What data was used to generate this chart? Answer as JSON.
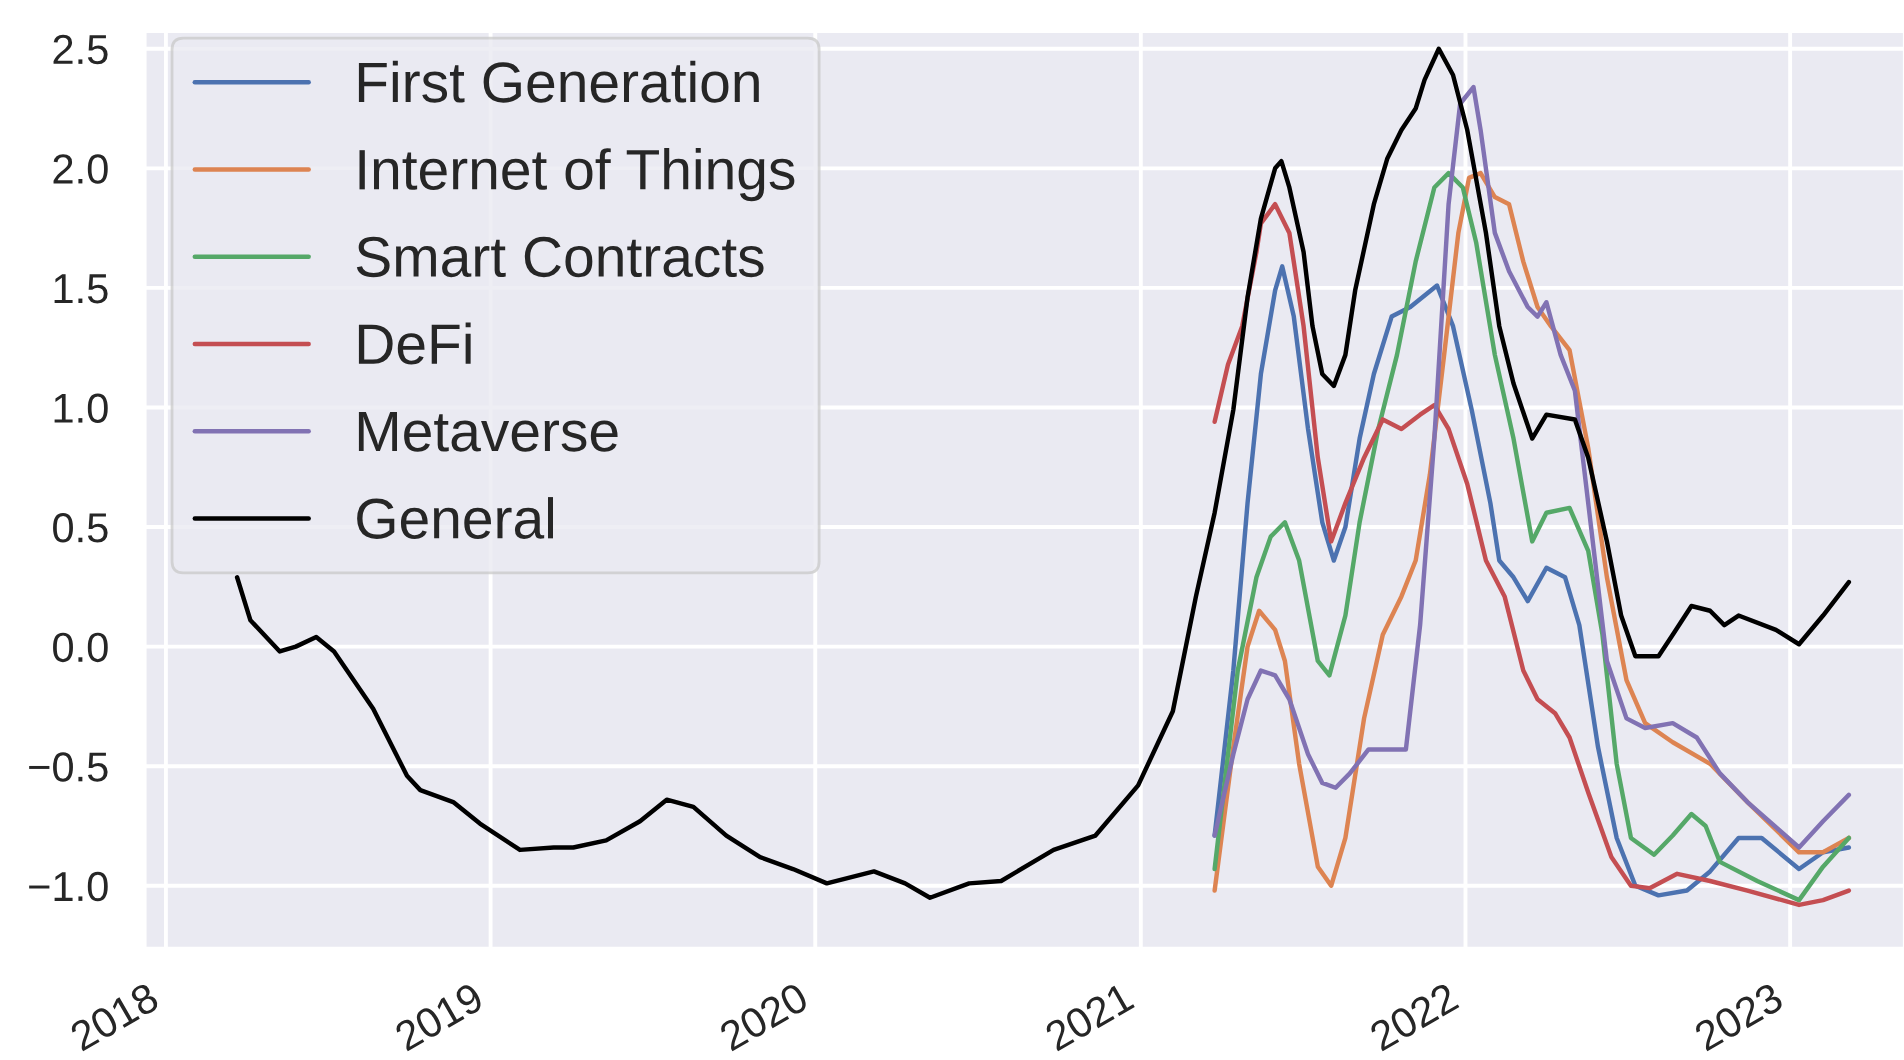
{
  "chart_data": {
    "type": "line",
    "xlim": [
      "2017-12-09",
      "2023-05-09"
    ],
    "xticks": [
      "2018",
      "2019",
      "2020",
      "2021",
      "2022",
      "2023"
    ],
    "ylim": [
      -1.26,
      2.57
    ],
    "yticks": [
      {
        "value": -1.0,
        "label": "−1.0"
      },
      {
        "value": -0.5,
        "label": "−0.5"
      },
      {
        "value": 0.0,
        "label": "0.0"
      },
      {
        "value": 0.5,
        "label": "0.5"
      },
      {
        "value": 1.0,
        "label": "1.0"
      },
      {
        "value": 1.5,
        "label": "1.5"
      },
      {
        "value": 2.0,
        "label": "2.0"
      },
      {
        "value": 2.5,
        "label": "2.5"
      }
    ],
    "grid": true,
    "legend": "top left",
    "series": [
      {
        "name": "First Generation",
        "color": "#4c72b0",
        "x": [
          "2021-03-25",
          "2021-04-15",
          "2021-05-01",
          "2021-05-16",
          "2021-06-01",
          "2021-06-09",
          "2021-06-22",
          "2021-07-08",
          "2021-07-24",
          "2021-08-06",
          "2021-08-19",
          "2021-09-04",
          "2021-09-20",
          "2021-10-10",
          "2021-10-31",
          "2021-11-30",
          "2021-12-18",
          "2022-01-08",
          "2022-01-29",
          "2022-02-08",
          "2022-02-24",
          "2022-03-12",
          "2022-04-02",
          "2022-04-23",
          "2022-05-09",
          "2022-05-30",
          "2022-06-20",
          "2022-07-11",
          "2022-08-06",
          "2022-09-07",
          "2022-10-03",
          "2022-11-04",
          "2022-11-30",
          "2023-01-11",
          "2023-02-07",
          "2023-03-08"
        ],
        "values": [
          -0.79,
          -0.1,
          0.6,
          1.14,
          1.49,
          1.59,
          1.38,
          0.91,
          0.52,
          0.36,
          0.5,
          0.87,
          1.14,
          1.38,
          1.42,
          1.51,
          1.34,
          0.99,
          0.6,
          0.36,
          0.29,
          0.19,
          0.33,
          0.29,
          0.09,
          -0.42,
          -0.8,
          -1.0,
          -1.04,
          -1.02,
          -0.94,
          -0.8,
          -0.8,
          -0.93,
          -0.86,
          -0.84
        ]
      },
      {
        "name": "Internet of Things",
        "color": "#dd8452",
        "x": [
          "2021-03-25",
          "2021-04-15",
          "2021-05-01",
          "2021-05-14",
          "2021-06-01",
          "2021-06-12",
          "2021-06-28",
          "2021-07-19",
          "2021-08-03",
          "2021-08-19",
          "2021-09-09",
          "2021-09-30",
          "2021-10-21",
          "2021-11-06",
          "2021-11-22",
          "2021-12-08",
          "2021-12-24",
          "2022-01-05",
          "2022-01-18",
          "2022-02-03",
          "2022-02-19",
          "2022-03-07",
          "2022-03-23",
          "2022-04-07",
          "2022-04-28",
          "2022-05-19",
          "2022-06-09",
          "2022-07-01",
          "2022-07-22",
          "2022-08-22",
          "2022-10-03",
          "2022-11-14",
          "2023-01-11",
          "2023-02-07",
          "2023-03-08"
        ],
        "values": [
          -1.02,
          -0.42,
          0.0,
          0.15,
          0.07,
          -0.06,
          -0.49,
          -0.92,
          -1.0,
          -0.8,
          -0.3,
          0.05,
          0.21,
          0.36,
          0.72,
          1.22,
          1.73,
          1.96,
          1.98,
          1.88,
          1.85,
          1.61,
          1.42,
          1.34,
          1.24,
          0.83,
          0.29,
          -0.14,
          -0.32,
          -0.4,
          -0.49,
          -0.65,
          -0.86,
          -0.86,
          -0.8
        ]
      },
      {
        "name": "Smart Contracts",
        "color": "#55a868",
        "x": [
          "2021-03-25",
          "2021-04-20",
          "2021-05-11",
          "2021-05-27",
          "2021-06-12",
          "2021-06-28",
          "2021-07-19",
          "2021-08-01",
          "2021-08-19",
          "2021-09-04",
          "2021-09-25",
          "2021-10-16",
          "2021-11-06",
          "2021-11-27",
          "2021-12-13",
          "2021-12-29",
          "2022-01-13",
          "2022-02-03",
          "2022-02-24",
          "2022-03-17",
          "2022-04-02",
          "2022-04-28",
          "2022-05-19",
          "2022-06-04",
          "2022-06-20",
          "2022-07-06",
          "2022-08-01",
          "2022-08-22",
          "2022-09-12",
          "2022-09-28",
          "2022-10-14",
          "2022-11-25",
          "2023-01-11",
          "2023-02-07",
          "2023-03-08"
        ],
        "values": [
          -0.93,
          -0.1,
          0.29,
          0.46,
          0.52,
          0.36,
          -0.06,
          -0.12,
          0.13,
          0.52,
          0.91,
          1.22,
          1.61,
          1.92,
          1.98,
          1.92,
          1.69,
          1.22,
          0.87,
          0.44,
          0.56,
          0.58,
          0.4,
          0.05,
          -0.49,
          -0.8,
          -0.87,
          -0.79,
          -0.7,
          -0.75,
          -0.9,
          -0.98,
          -1.06,
          -0.92,
          -0.8
        ]
      },
      {
        "name": "DeFi",
        "color": "#c44e52",
        "x": [
          "2021-03-25",
          "2021-04-09",
          "2021-04-25",
          "2021-05-11",
          "2021-05-16",
          "2021-06-01",
          "2021-06-17",
          "2021-07-03",
          "2021-07-19",
          "2021-08-03",
          "2021-08-19",
          "2021-09-09",
          "2021-09-30",
          "2021-10-21",
          "2021-11-11",
          "2021-11-27",
          "2021-12-13",
          "2022-01-03",
          "2022-01-24",
          "2022-02-14",
          "2022-03-07",
          "2022-03-23",
          "2022-04-12",
          "2022-04-28",
          "2022-05-19",
          "2022-06-14",
          "2022-07-06",
          "2022-07-27",
          "2022-08-27",
          "2022-10-03",
          "2022-11-14",
          "2023-01-11",
          "2023-02-07",
          "2023-03-08"
        ],
        "values": [
          0.94,
          1.18,
          1.34,
          1.65,
          1.77,
          1.85,
          1.73,
          1.34,
          0.79,
          0.44,
          0.6,
          0.79,
          0.95,
          0.91,
          0.97,
          1.01,
          0.91,
          0.68,
          0.36,
          0.21,
          -0.1,
          -0.22,
          -0.28,
          -0.38,
          -0.61,
          -0.88,
          -1.0,
          -1.01,
          -0.95,
          -0.98,
          -1.02,
          -1.08,
          -1.06,
          -1.02
        ]
      },
      {
        "name": "Metaverse",
        "color": "#8172b3",
        "x": [
          "2021-03-25",
          "2021-04-15",
          "2021-05-01",
          "2021-05-16",
          "2021-06-01",
          "2021-06-17",
          "2021-07-08",
          "2021-07-24",
          "2021-08-08",
          "2021-08-24",
          "2021-09-14",
          "2021-10-05",
          "2021-10-26",
          "2021-11-11",
          "2021-11-27",
          "2021-12-13",
          "2021-12-26",
          "2022-01-10",
          "2022-01-18",
          "2022-02-03",
          "2022-02-19",
          "2022-03-12",
          "2022-03-23",
          "2022-04-02",
          "2022-04-18",
          "2022-05-04",
          "2022-05-19",
          "2022-06-09",
          "2022-07-01",
          "2022-07-22",
          "2022-08-22",
          "2022-09-18",
          "2022-10-14",
          "2022-11-14",
          "2023-01-11",
          "2023-02-07",
          "2023-03-08"
        ],
        "values": [
          -0.79,
          -0.45,
          -0.22,
          -0.1,
          -0.12,
          -0.22,
          -0.45,
          -0.57,
          -0.59,
          -0.53,
          -0.43,
          -0.43,
          -0.43,
          0.09,
          0.87,
          1.85,
          2.27,
          2.34,
          2.16,
          1.73,
          1.57,
          1.42,
          1.38,
          1.44,
          1.22,
          1.07,
          0.6,
          -0.06,
          -0.3,
          -0.34,
          -0.32,
          -0.38,
          -0.53,
          -0.65,
          -0.84,
          -0.73,
          -0.62
        ]
      },
      {
        "name": "General",
        "color": "#000000",
        "x": [
          "2018-03-22",
          "2018-04-06",
          "2018-05-09",
          "2018-05-27",
          "2018-06-19",
          "2018-07-09",
          "2018-08-22",
          "2018-09-29",
          "2018-10-14",
          "2018-11-20",
          "2018-12-20",
          "2019-02-03",
          "2019-03-13",
          "2019-04-04",
          "2019-05-11",
          "2019-06-18",
          "2019-07-18",
          "2019-08-17",
          "2019-09-23",
          "2019-10-31",
          "2019-12-07",
          "2020-01-14",
          "2020-03-07",
          "2020-04-11",
          "2020-05-09",
          "2020-06-22",
          "2020-07-28",
          "2020-09-25",
          "2020-11-11",
          "2020-12-29",
          "2021-02-06",
          "2021-03-04",
          "2021-03-25",
          "2021-04-15",
          "2021-05-01",
          "2021-05-16",
          "2021-06-01",
          "2021-06-08",
          "2021-06-17",
          "2021-07-03",
          "2021-07-13",
          "2021-07-24",
          "2021-08-06",
          "2021-08-19",
          "2021-08-30",
          "2021-09-20",
          "2021-10-05",
          "2021-10-21",
          "2021-11-06",
          "2021-11-16",
          "2021-12-02",
          "2021-12-18",
          "2022-01-03",
          "2022-01-24",
          "2022-02-08",
          "2022-02-24",
          "2022-03-17",
          "2022-04-02",
          "2022-05-04",
          "2022-05-19",
          "2022-06-09",
          "2022-06-25",
          "2022-07-11",
          "2022-08-06",
          "2022-08-22",
          "2022-09-12",
          "2022-10-03",
          "2022-10-19",
          "2022-11-04",
          "2022-12-16",
          "2023-01-11",
          "2023-02-07",
          "2023-03-08"
        ],
        "values": [
          0.29,
          0.11,
          -0.02,
          0.0,
          0.04,
          -0.02,
          -0.26,
          -0.54,
          -0.6,
          -0.65,
          -0.74,
          -0.85,
          -0.84,
          -0.84,
          -0.81,
          -0.73,
          -0.64,
          -0.67,
          -0.79,
          -0.88,
          -0.93,
          -0.99,
          -0.94,
          -0.99,
          -1.05,
          -0.99,
          -0.98,
          -0.85,
          -0.79,
          -0.58,
          -0.27,
          0.21,
          0.56,
          0.99,
          1.46,
          1.79,
          2.0,
          2.03,
          1.92,
          1.65,
          1.34,
          1.14,
          1.09,
          1.22,
          1.49,
          1.85,
          2.04,
          2.16,
          2.25,
          2.37,
          2.5,
          2.39,
          2.16,
          1.73,
          1.34,
          1.1,
          0.87,
          0.97,
          0.95,
          0.79,
          0.44,
          0.13,
          -0.04,
          -0.04,
          0.05,
          0.17,
          0.15,
          0.09,
          0.13,
          0.07,
          0.01,
          0.13,
          0.27
        ]
      }
    ]
  }
}
